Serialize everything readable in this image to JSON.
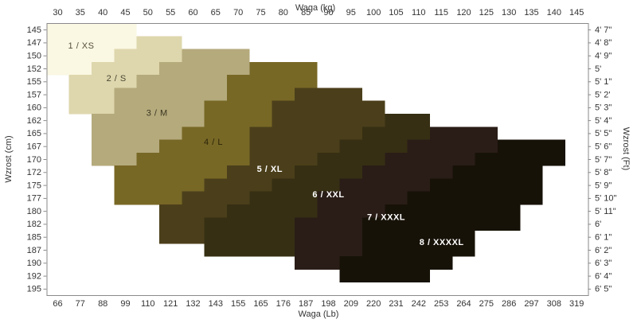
{
  "axes": {
    "top_title": "Waga  (kg)",
    "bottom_title": "Waga  (Lb)",
    "left_title": "Wzrost  (cm)",
    "right_title": "Wzrost  (Ft)"
  },
  "chart_data": {
    "type": "heatmap",
    "x_unit": "kg",
    "y_unit": "cm",
    "x_range": [
      27.5,
      147.5
    ],
    "kg_ticks": [
      30,
      35,
      40,
      45,
      50,
      55,
      60,
      65,
      70,
      75,
      80,
      85,
      90,
      95,
      100,
      105,
      110,
      115,
      120,
      125,
      130,
      135,
      140,
      145
    ],
    "lb_ticks": [
      66,
      77,
      88,
      99,
      110,
      121,
      132,
      143,
      155,
      165,
      176,
      187,
      198,
      209,
      220,
      231,
      242,
      253,
      264,
      275,
      286,
      297,
      308,
      319
    ],
    "cm_ticks": [
      145,
      147,
      150,
      152,
      155,
      157,
      160,
      162,
      165,
      167,
      170,
      172,
      175,
      177,
      180,
      182,
      185,
      187,
      190,
      192,
      195
    ],
    "ft_ticks": [
      "4'  7\"",
      "4'  8\"",
      "4'  9\"",
      "5'",
      "5'  1\"",
      "5'  2'",
      "5'  3\"",
      "5'  4\"",
      "5'  5\"",
      "5'  6\"",
      "5'  7\"",
      "5'  8\"",
      "5'  9\"",
      "5'  10\"",
      "5'  11\"",
      "6'",
      "6'  1\"",
      "6'  2\"",
      "6'  3\"",
      "6'  4\"",
      "6'  5\""
    ],
    "bands": [
      {
        "index": 1,
        "size": "XS",
        "label": "1 / XS",
        "color": "#faf7e2",
        "label_color": "#55503a",
        "label_bold": false,
        "label_kg": 35.2,
        "label_row": 1.72,
        "cells": [
          [
            0,
            0,
            4
          ],
          [
            1,
            0,
            4
          ],
          [
            2,
            0,
            3
          ],
          [
            3,
            0,
            2
          ]
        ]
      },
      {
        "index": 2,
        "size": "S",
        "label": "2 / S",
        "color": "#ded7ad",
        "label_color": "#4a4632",
        "label_bold": false,
        "label_kg": 43.0,
        "label_row": 4.25,
        "cells": [
          [
            1,
            4,
            6
          ],
          [
            2,
            3,
            6
          ],
          [
            3,
            2,
            5
          ],
          [
            4,
            1,
            4
          ],
          [
            5,
            1,
            3
          ],
          [
            6,
            1,
            3
          ]
        ]
      },
      {
        "index": 3,
        "size": "M",
        "label": "3 / M",
        "color": "#b4aa7c",
        "label_color": "#3c3722",
        "label_bold": false,
        "label_kg": 52.0,
        "label_row": 6.9,
        "cells": [
          [
            2,
            6,
            9
          ],
          [
            3,
            5,
            9
          ],
          [
            4,
            4,
            8
          ],
          [
            5,
            3,
            8
          ],
          [
            6,
            3,
            7
          ],
          [
            7,
            2,
            7
          ],
          [
            8,
            2,
            6
          ],
          [
            9,
            2,
            5
          ],
          [
            10,
            2,
            4
          ]
        ]
      },
      {
        "index": 4,
        "size": "L",
        "label": "4 / L",
        "color": "#786826",
        "label_color": "#2a2408",
        "label_bold": false,
        "label_kg": 64.5,
        "label_row": 9.15,
        "cells": [
          [
            3,
            9,
            12
          ],
          [
            4,
            8,
            12
          ],
          [
            5,
            8,
            11
          ],
          [
            6,
            7,
            10
          ],
          [
            7,
            7,
            10
          ],
          [
            8,
            6,
            9
          ],
          [
            9,
            5,
            9
          ],
          [
            10,
            4,
            9
          ],
          [
            11,
            3,
            8
          ],
          [
            12,
            3,
            7
          ],
          [
            13,
            3,
            6
          ]
        ]
      },
      {
        "index": 5,
        "size": "XL",
        "label": "5 / XL",
        "color": "#4b3f1b",
        "label_color": "#ffffff",
        "label_bold": true,
        "label_kg": 77.0,
        "label_row": 11.25,
        "cells": [
          [
            5,
            11,
            14
          ],
          [
            6,
            10,
            15
          ],
          [
            7,
            10,
            15
          ],
          [
            8,
            9,
            14
          ],
          [
            9,
            9,
            13
          ],
          [
            10,
            9,
            12
          ],
          [
            11,
            8,
            11
          ],
          [
            12,
            7,
            10
          ],
          [
            13,
            6,
            9
          ],
          [
            14,
            5,
            8
          ],
          [
            15,
            5,
            7
          ],
          [
            16,
            5,
            7
          ]
        ]
      },
      {
        "index": 6,
        "size": "XXL",
        "label": "6 / XXL",
        "color": "#362f13",
        "label_color": "#ffffff",
        "label_bold": true,
        "label_kg": 90.0,
        "label_row": 13.2,
        "cells": [
          [
            7,
            15,
            17
          ],
          [
            8,
            14,
            17
          ],
          [
            9,
            13,
            16
          ],
          [
            10,
            12,
            15
          ],
          [
            11,
            11,
            14
          ],
          [
            12,
            10,
            13
          ],
          [
            13,
            9,
            12
          ],
          [
            14,
            8,
            12
          ],
          [
            15,
            7,
            11
          ],
          [
            16,
            7,
            11
          ],
          [
            17,
            7,
            11
          ]
        ]
      },
      {
        "index": 7,
        "size": "XXXL",
        "label": "7 / XXXL",
        "color": "#2a1d17",
        "label_color": "#ffffff",
        "label_bold": true,
        "label_kg": 102.8,
        "label_row": 14.95,
        "cells": [
          [
            8,
            17,
            20
          ],
          [
            9,
            16,
            20
          ],
          [
            10,
            15,
            19
          ],
          [
            11,
            14,
            18
          ],
          [
            12,
            13,
            17
          ],
          [
            13,
            12,
            16
          ],
          [
            14,
            12,
            15
          ],
          [
            15,
            11,
            14
          ],
          [
            16,
            11,
            14
          ],
          [
            17,
            11,
            14
          ],
          [
            18,
            11,
            13
          ]
        ]
      },
      {
        "index": 8,
        "size": "XXXXL",
        "label": "8 / XXXXL",
        "color": "#171208",
        "label_color": "#ffffff",
        "label_bold": true,
        "label_kg": 115.1,
        "label_row": 16.9,
        "cells": [
          [
            9,
            20,
            23
          ],
          [
            10,
            19,
            23
          ],
          [
            11,
            18,
            22
          ],
          [
            12,
            17,
            22
          ],
          [
            13,
            16,
            22
          ],
          [
            14,
            15,
            21
          ],
          [
            15,
            14,
            21
          ],
          [
            16,
            14,
            19
          ],
          [
            17,
            14,
            19
          ],
          [
            18,
            13,
            18
          ],
          [
            19,
            13,
            17
          ]
        ]
      }
    ]
  }
}
